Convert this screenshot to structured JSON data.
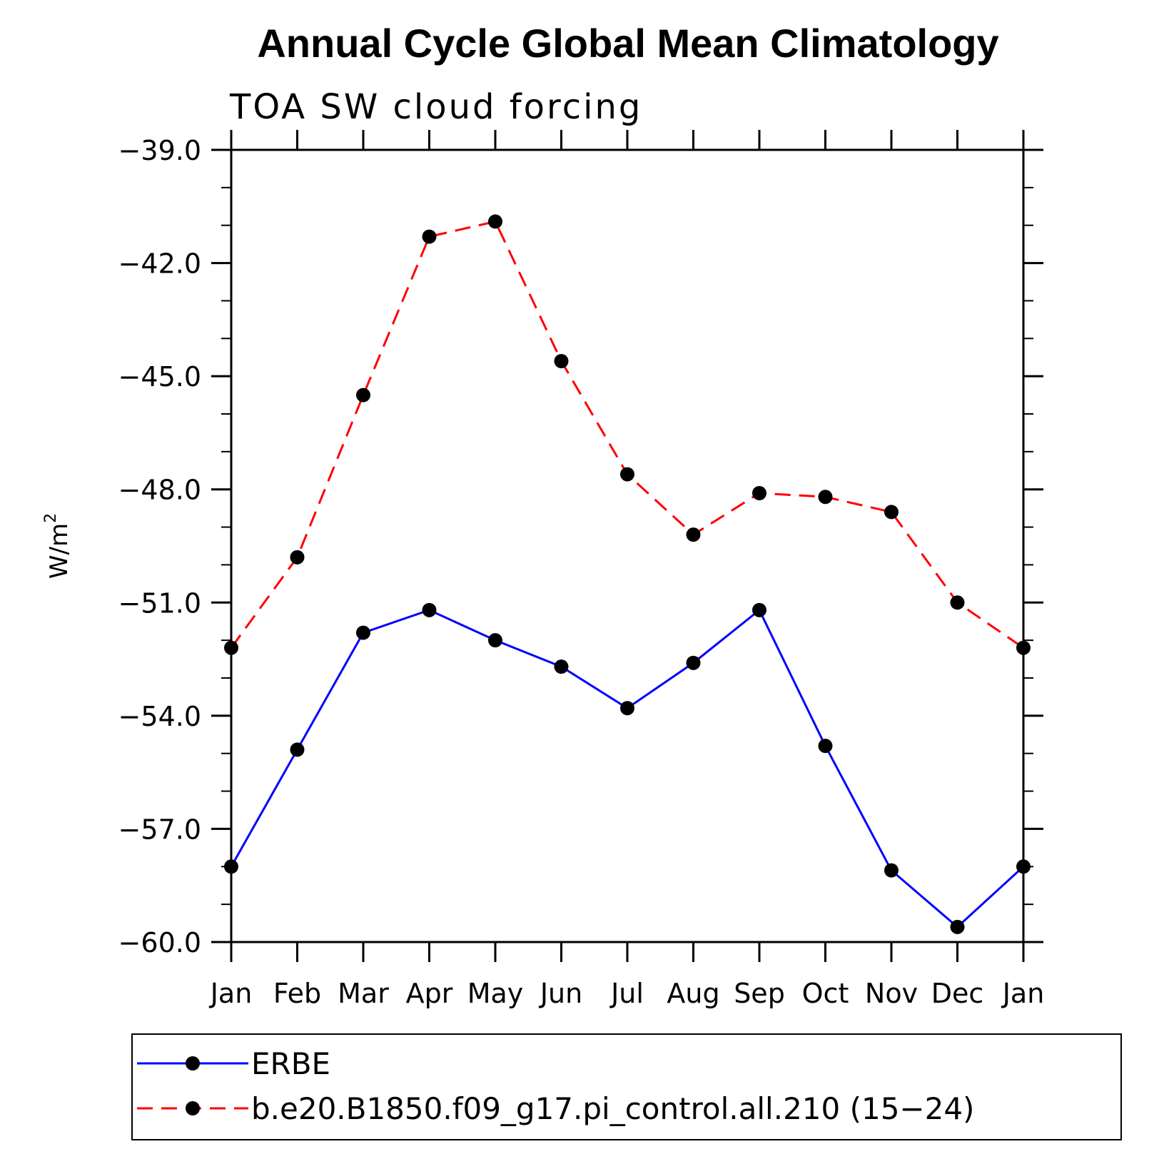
{
  "chart_data": {
    "type": "line",
    "title": "Annual Cycle Global Mean Climatology",
    "subtitle": "TOA SW cloud forcing",
    "ylabel": "W/m",
    "ylabel_sup": "2",
    "xlabel": "",
    "categories": [
      "Jan",
      "Feb",
      "Mar",
      "Apr",
      "May",
      "Jun",
      "Jul",
      "Aug",
      "Sep",
      "Oct",
      "Nov",
      "Dec",
      "Jan"
    ],
    "ylim": [
      -60.0,
      -39.0
    ],
    "yticks": [
      "-39.0",
      "-42.0",
      "-45.0",
      "-48.0",
      "-51.0",
      "-54.0",
      "-57.0",
      "-60.0"
    ],
    "ytick_values": [
      -39.0,
      -42.0,
      -45.0,
      -48.0,
      -51.0,
      -54.0,
      -57.0,
      -60.0
    ],
    "grid": false,
    "legend_position": "bottom",
    "series": [
      {
        "name": "ERBE",
        "color": "#0000ff",
        "line_style": "solid",
        "marker": "filled-circle",
        "values": [
          -58.0,
          -54.9,
          -51.8,
          -51.2,
          -52.0,
          -52.7,
          -53.8,
          -52.6,
          -51.2,
          -54.8,
          -58.1,
          -59.6,
          -58.0
        ]
      },
      {
        "name": "b.e20.B1850.f09_g17.pi_control.all.210 (15-24)",
        "color": "#ff0000",
        "line_style": "dashed",
        "marker": "filled-circle",
        "values": [
          -52.2,
          -49.8,
          -45.5,
          -41.3,
          -40.9,
          -44.6,
          -47.6,
          -49.2,
          -48.1,
          -48.2,
          -48.6,
          -51.0,
          -52.2
        ]
      }
    ]
  }
}
